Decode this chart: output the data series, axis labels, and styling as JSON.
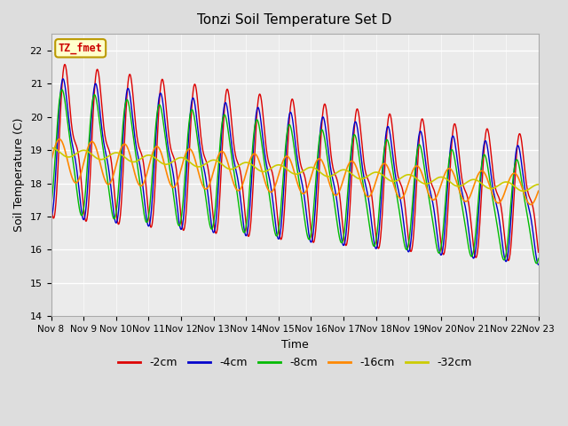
{
  "title": "Tonzi Soil Temperature Set D",
  "xlabel": "Time",
  "ylabel": "Soil Temperature (C)",
  "ylim": [
    14.0,
    22.5
  ],
  "bg_color": "#dddddd",
  "plot_bg_color": "#ebebeb",
  "label_box_text": "TZ_fmet",
  "label_box_facecolor": "#ffffcc",
  "label_box_edgecolor": "#bb9900",
  "label_box_textcolor": "#cc0000",
  "colors": {
    "-2cm": "#dd0000",
    "-4cm": "#0000cc",
    "-8cm": "#00bb00",
    "-16cm": "#ff8800",
    "-32cm": "#cccc00"
  },
  "tick_labels": [
    "Nov 8",
    "Nov 9",
    "Nov 10",
    "Nov 11",
    "Nov 12",
    "Nov 13",
    "Nov 14",
    "Nov 15",
    "Nov 16",
    "Nov 17",
    "Nov 18",
    "Nov 19",
    "Nov 20",
    "Nov 21",
    "Nov 22",
    "Nov 23"
  ],
  "days": 15
}
